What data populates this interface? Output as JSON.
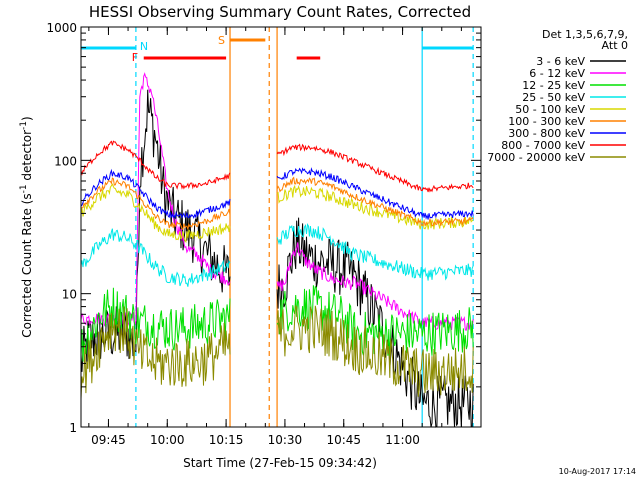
{
  "chart_data": {
    "type": "line",
    "title": "HESSI Observing Summary Count Rates, Corrected",
    "xlabel": "Start Time (27-Feb-15 09:34:42)",
    "ylabel": "Corrected Count Rate (s",
    "ylabel_sup1": "-1",
    "ylabel_mid": " detector",
    "ylabel_sup2": "-1",
    "ylabel_end": ")",
    "yscale": "log",
    "xlim": [
      "09:38",
      "11:20"
    ],
    "ylim": [
      1,
      1000
    ],
    "x_ticks": [
      "09:45",
      "10:00",
      "10:15",
      "10:30",
      "10:45",
      "11:00"
    ],
    "y_ticks": [
      "1",
      "10",
      "100",
      "1000"
    ],
    "legend_header": [
      "Det 1,3,5,6,7,9,",
      "Att 0"
    ],
    "legend_placement": "right",
    "timestamp": "10-Aug-2017 17:14",
    "flag_labels": {
      "night": "N",
      "flare": "F",
      "saa": "S"
    },
    "flag_colors": {
      "night": "#00d8ff",
      "flare": "#ff0000",
      "saa": "#ff8000"
    },
    "flags": {
      "night": [
        [
          "09:38",
          "09:52"
        ],
        [
          "11:05",
          "11:18"
        ]
      ],
      "flare": [
        [
          "09:54",
          "10:15"
        ],
        [
          "10:33",
          "10:39"
        ]
      ],
      "saa": [
        [
          "10:16",
          "10:25"
        ]
      ]
    },
    "vlines": [
      {
        "x": "09:52",
        "color": "#00d8ff",
        "style": "dash"
      },
      {
        "x": "10:16",
        "color": "#ff8000",
        "style": "solid"
      },
      {
        "x": "10:26",
        "color": "#ff8000",
        "style": "dash"
      },
      {
        "x": "10:28",
        "color": "#ff8000",
        "style": "solid"
      },
      {
        "x": "11:05",
        "color": "#00d8ff",
        "style": "solid"
      },
      {
        "x": "11:18",
        "color": "#00d8ff",
        "style": "dash"
      }
    ],
    "gaps": [
      [
        "10:16",
        "10:28"
      ]
    ],
    "series": [
      {
        "name": "3 - 6 keV",
        "color": "#000000",
        "points": [
          [
            "09:38",
            3
          ],
          [
            "09:40",
            4.5
          ],
          [
            "09:45",
            5
          ],
          [
            "09:50",
            5
          ],
          [
            "09:52",
            4
          ],
          [
            "09:53",
            80
          ],
          [
            "09:55",
            250
          ],
          [
            "09:57",
            150
          ],
          [
            "09:59",
            60
          ],
          [
            "10:01",
            40
          ],
          [
            "10:04",
            32
          ],
          [
            "10:07",
            27
          ],
          [
            "10:10",
            20
          ],
          [
            "10:13",
            16
          ],
          [
            "10:15",
            14
          ],
          [
            "10:28",
            11
          ],
          [
            "10:30",
            12
          ],
          [
            "10:32",
            20
          ],
          [
            "10:33",
            24
          ],
          [
            "10:35",
            20
          ],
          [
            "10:37",
            18
          ],
          [
            "10:40",
            17
          ],
          [
            "10:43",
            16
          ],
          [
            "10:46",
            15
          ],
          [
            "10:48",
            13
          ],
          [
            "11:05",
            1.5
          ],
          [
            "11:10",
            1.5
          ],
          [
            "11:18",
            1.5
          ]
        ],
        "noise": 0.5
      },
      {
        "name": "6 - 12 keV",
        "color": "#ff00ff",
        "points": [
          [
            "09:38",
            6.5
          ],
          [
            "09:45",
            6.5
          ],
          [
            "09:52",
            6.5
          ],
          [
            "09:53",
            300
          ],
          [
            "09:54",
            420
          ],
          [
            "09:56",
            330
          ],
          [
            "09:58",
            150
          ],
          [
            "10:00",
            60
          ],
          [
            "10:02",
            35
          ],
          [
            "10:05",
            22
          ],
          [
            "10:08",
            19
          ],
          [
            "10:11",
            15
          ],
          [
            "10:15",
            13
          ],
          [
            "10:28",
            11
          ],
          [
            "10:30",
            12
          ],
          [
            "10:32",
            20
          ],
          [
            "10:33",
            23
          ],
          [
            "10:35",
            18
          ],
          [
            "10:38",
            15
          ],
          [
            "10:42",
            13
          ],
          [
            "10:46",
            12
          ],
          [
            "10:48",
            12
          ],
          [
            "11:05",
            6
          ],
          [
            "11:18",
            6
          ]
        ],
        "noise": 0.12
      },
      {
        "name": "12 - 25 keV",
        "color": "#00e000",
        "points": [
          [
            "09:38",
            4
          ],
          [
            "09:40",
            5
          ],
          [
            "09:43",
            7
          ],
          [
            "09:46",
            8
          ],
          [
            "09:50",
            7
          ],
          [
            "09:52",
            6
          ],
          [
            "09:55",
            6
          ],
          [
            "10:00",
            5.5
          ],
          [
            "10:05",
            5.5
          ],
          [
            "10:10",
            6
          ],
          [
            "10:15",
            6.5
          ],
          [
            "10:28",
            7
          ],
          [
            "10:32",
            8
          ],
          [
            "10:35",
            8
          ],
          [
            "10:40",
            7.5
          ],
          [
            "10:45",
            6.5
          ],
          [
            "10:48",
            5
          ],
          [
            "11:05",
            5
          ],
          [
            "11:18",
            5.5
          ]
        ],
        "noise": 0.4
      },
      {
        "name": "25 - 50 keV",
        "color": "#00e8e8",
        "points": [
          [
            "09:38",
            16
          ],
          [
            "09:42",
            22
          ],
          [
            "09:46",
            28
          ],
          [
            "09:50",
            26
          ],
          [
            "09:53",
            22
          ],
          [
            "09:57",
            16
          ],
          [
            "10:00",
            13.5
          ],
          [
            "10:05",
            12.5
          ],
          [
            "10:10",
            14
          ],
          [
            "10:15",
            16
          ],
          [
            "10:28",
            25
          ],
          [
            "10:32",
            30
          ],
          [
            "10:37",
            30
          ],
          [
            "10:42",
            26
          ],
          [
            "10:47",
            20
          ],
          [
            "11:05",
            14
          ],
          [
            "11:18",
            15
          ]
        ],
        "noise": 0.12
      },
      {
        "name": "50 - 100 keV",
        "color": "#d8d800",
        "points": [
          [
            "09:38",
            40
          ],
          [
            "09:42",
            52
          ],
          [
            "09:46",
            60
          ],
          [
            "09:50",
            55
          ],
          [
            "09:53",
            45
          ],
          [
            "09:57",
            33
          ],
          [
            "10:00",
            28
          ],
          [
            "10:05",
            27
          ],
          [
            "10:10",
            29
          ],
          [
            "10:15",
            31
          ],
          [
            "10:28",
            52
          ],
          [
            "10:32",
            58
          ],
          [
            "10:37",
            58
          ],
          [
            "10:42",
            53
          ],
          [
            "10:47",
            47
          ],
          [
            "11:05",
            33
          ],
          [
            "11:18",
            35
          ]
        ],
        "noise": 0.1
      },
      {
        "name": "100 - 300 keV",
        "color": "#ff8000",
        "points": [
          [
            "09:38",
            45
          ],
          [
            "09:42",
            58
          ],
          [
            "09:46",
            70
          ],
          [
            "09:50",
            64
          ],
          [
            "09:53",
            52
          ],
          [
            "09:57",
            38
          ],
          [
            "10:00",
            33
          ],
          [
            "10:05",
            32
          ],
          [
            "10:10",
            35
          ],
          [
            "10:15",
            40
          ],
          [
            "10:28",
            60
          ],
          [
            "10:32",
            70
          ],
          [
            "10:37",
            70
          ],
          [
            "10:42",
            64
          ],
          [
            "10:47",
            55
          ],
          [
            "11:05",
            34
          ],
          [
            "11:18",
            35
          ]
        ],
        "noise": 0.06
      },
      {
        "name": "300 - 800 keV",
        "color": "#0000ff",
        "points": [
          [
            "09:38",
            48
          ],
          [
            "09:42",
            65
          ],
          [
            "09:46",
            80
          ],
          [
            "09:50",
            74
          ],
          [
            "09:53",
            60
          ],
          [
            "09:57",
            45
          ],
          [
            "10:00",
            39
          ],
          [
            "10:05",
            38
          ],
          [
            "10:10",
            42
          ],
          [
            "10:15",
            47
          ],
          [
            "10:28",
            72
          ],
          [
            "10:32",
            82
          ],
          [
            "10:37",
            82
          ],
          [
            "10:42",
            75
          ],
          [
            "10:47",
            64
          ],
          [
            "11:05",
            38
          ],
          [
            "11:18",
            40
          ]
        ],
        "noise": 0.06
      },
      {
        "name": "800 - 7000 keV",
        "color": "#ff0000",
        "points": [
          [
            "09:38",
            80
          ],
          [
            "09:42",
            110
          ],
          [
            "09:46",
            135
          ],
          [
            "09:50",
            120
          ],
          [
            "09:53",
            100
          ],
          [
            "09:57",
            75
          ],
          [
            "10:00",
            65
          ],
          [
            "10:05",
            64
          ],
          [
            "10:10",
            67
          ],
          [
            "10:15",
            75
          ],
          [
            "10:28",
            110
          ],
          [
            "10:32",
            125
          ],
          [
            "10:37",
            125
          ],
          [
            "10:42",
            115
          ],
          [
            "10:47",
            100
          ],
          [
            "11:05",
            60
          ],
          [
            "11:18",
            65
          ]
        ],
        "noise": 0.05
      },
      {
        "name": "7000 - 20000 keV",
        "color": "#8b8b00",
        "points": [
          [
            "09:38",
            2.5
          ],
          [
            "09:40",
            3
          ],
          [
            "09:43",
            4.5
          ],
          [
            "09:46",
            6
          ],
          [
            "09:50",
            5
          ],
          [
            "09:53",
            3.5
          ],
          [
            "09:57",
            3
          ],
          [
            "10:00",
            3
          ],
          [
            "10:05",
            3
          ],
          [
            "10:10",
            3.2
          ],
          [
            "10:15",
            4
          ],
          [
            "10:28",
            5
          ],
          [
            "10:32",
            5.5
          ],
          [
            "10:37",
            5.5
          ],
          [
            "10:42",
            5
          ],
          [
            "10:47",
            4
          ],
          [
            "11:05",
            2.5
          ],
          [
            "11:18",
            2.7
          ]
        ],
        "noise": 0.45
      }
    ]
  }
}
